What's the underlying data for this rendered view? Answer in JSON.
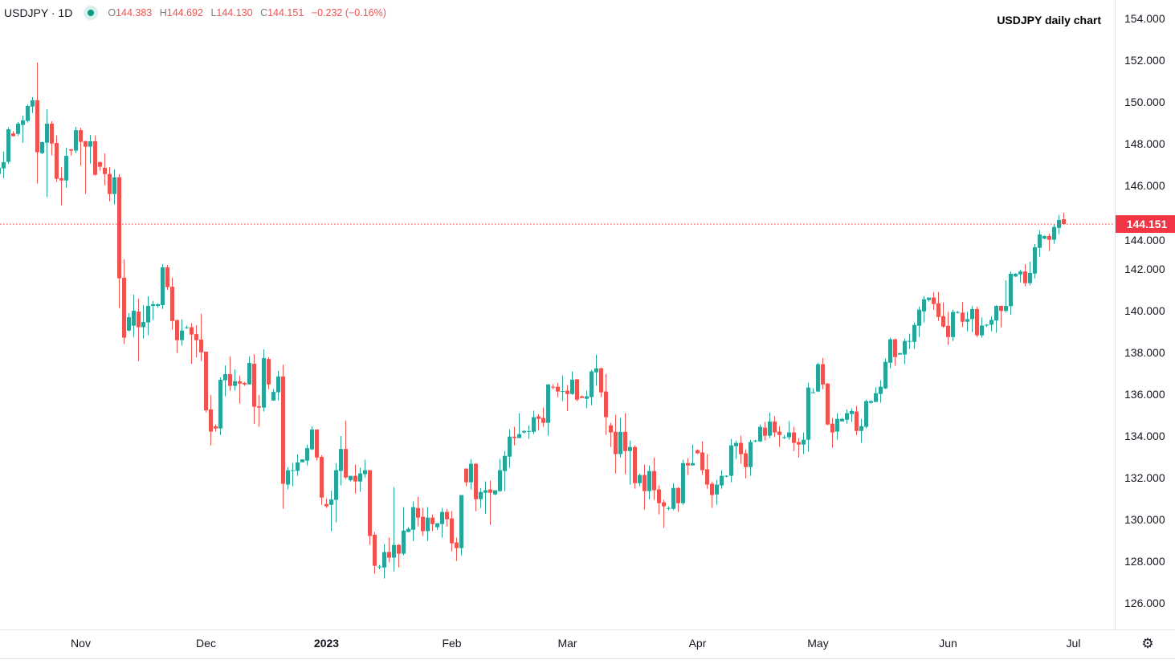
{
  "header": {
    "symbol": "USDJPY · 1D",
    "status_icon": "market-open-dot-icon",
    "open_key": "O",
    "open": "144.383",
    "high_key": "H",
    "high": "144.692",
    "low_key": "L",
    "low": "144.130",
    "close_key": "C",
    "close": "144.151",
    "change": "−0.232 (−0.16%)"
  },
  "settings_icon": "gear-icon",
  "colors": {
    "up": "#26a69a",
    "down": "#ef5350",
    "last_price": "#f23645",
    "text": "#131722"
  },
  "chart_data": {
    "type": "candlestick",
    "title": "USDJPY daily chart",
    "x_unit": "bar index",
    "ylim": [
      125,
      155
    ],
    "y_ticks": [
      "126.000",
      "128.000",
      "130.000",
      "132.000",
      "134.000",
      "136.000",
      "138.000",
      "140.000",
      "142.000",
      "144.000",
      "146.000",
      "148.000",
      "150.000",
      "152.000",
      "154.000"
    ],
    "x_ticks": [
      {
        "label": "Nov",
        "bar": 17,
        "bold": false
      },
      {
        "label": "Dec",
        "bar": 43,
        "bold": false
      },
      {
        "label": "2023",
        "bar": 68,
        "bold": true
      },
      {
        "label": "Feb",
        "bar": 94,
        "bold": false
      },
      {
        "label": "Mar",
        "bar": 118,
        "bold": false
      },
      {
        "label": "Apr",
        "bar": 145,
        "bold": false
      },
      {
        "label": "May",
        "bar": 170,
        "bold": false
      },
      {
        "label": "Jun",
        "bar": 197,
        "bold": false
      },
      {
        "label": "Jul",
        "bar": 223,
        "bold": false
      }
    ],
    "last_price": {
      "value": 144.151,
      "label": "144.151"
    },
    "grid": false,
    "ohlc_order": [
      "open",
      "high",
      "low",
      "close"
    ],
    "ohlc": [
      [
        146.55,
        147.0,
        145.8,
        146.85
      ],
      [
        146.82,
        147.62,
        146.35,
        147.12
      ],
      [
        147.13,
        148.79,
        147.03,
        148.69
      ],
      [
        148.49,
        148.6,
        148.36,
        148.36
      ],
      [
        148.47,
        149.05,
        148.37,
        148.96
      ],
      [
        148.9,
        149.35,
        148.05,
        149.12
      ],
      [
        149.09,
        149.88,
        149.01,
        149.81
      ],
      [
        149.78,
        150.23,
        149.47,
        150.08
      ],
      [
        150.08,
        151.89,
        146.09,
        147.59
      ],
      [
        147.55,
        148.1,
        147.5,
        148.08
      ],
      [
        148.05,
        149.65,
        145.44,
        148.96
      ],
      [
        148.96,
        149.08,
        147.44,
        148.01
      ],
      [
        148.04,
        148.39,
        146.17,
        146.32
      ],
      [
        146.35,
        146.88,
        145.05,
        146.24
      ],
      [
        146.24,
        147.81,
        145.9,
        147.42
      ],
      [
        147.73,
        147.75,
        147.44,
        147.67
      ],
      [
        147.67,
        148.81,
        147.55,
        148.65
      ],
      [
        148.65,
        148.77,
        146.94,
        148.09
      ],
      [
        148.12,
        148.15,
        145.59,
        147.86
      ],
      [
        147.86,
        148.42,
        147.05,
        148.12
      ],
      [
        148.12,
        148.39,
        146.47,
        146.51
      ],
      [
        147.12,
        147.14,
        146.7,
        146.9
      ],
      [
        146.85,
        147.54,
        146.01,
        146.55
      ],
      [
        146.55,
        146.88,
        145.24,
        145.59
      ],
      [
        145.59,
        146.77,
        145.09,
        146.39
      ],
      [
        146.39,
        146.54,
        140.13,
        141.55
      ],
      [
        141.58,
        142.46,
        138.4,
        138.71
      ],
      [
        139.05,
        139.88,
        139.01,
        139.69
      ],
      [
        139.28,
        140.77,
        138.74,
        140.0
      ],
      [
        139.96,
        140.58,
        137.59,
        139.21
      ],
      [
        139.21,
        140.27,
        138.67,
        139.46
      ],
      [
        139.44,
        140.69,
        138.82,
        140.23
      ],
      [
        140.23,
        140.46,
        139.55,
        140.31
      ],
      [
        140.23,
        140.35,
        140.15,
        140.31
      ],
      [
        140.27,
        142.23,
        140.08,
        142.08
      ],
      [
        142.08,
        142.19,
        141.0,
        141.13
      ],
      [
        141.15,
        141.59,
        139.09,
        139.51
      ],
      [
        139.55,
        139.58,
        137.98,
        138.59
      ],
      [
        138.59,
        139.59,
        138.32,
        139.05
      ],
      [
        139.17,
        139.3,
        139.13,
        139.21
      ],
      [
        139.21,
        139.4,
        137.45,
        138.86
      ],
      [
        138.88,
        139.31,
        137.77,
        138.59
      ],
      [
        138.62,
        139.85,
        137.59,
        138.01
      ],
      [
        138.04,
        138.04,
        135.13,
        135.23
      ],
      [
        135.27,
        135.96,
        133.55,
        134.21
      ],
      [
        134.46,
        134.56,
        134.21,
        134.36
      ],
      [
        134.36,
        136.81,
        134.05,
        136.69
      ],
      [
        136.67,
        137.38,
        135.9,
        136.96
      ],
      [
        136.96,
        137.81,
        136.17,
        136.4
      ],
      [
        136.4,
        137.19,
        136.17,
        136.62
      ],
      [
        136.62,
        136.88,
        135.55,
        136.51
      ],
      [
        136.54,
        136.59,
        136.4,
        136.47
      ],
      [
        136.47,
        137.81,
        136.45,
        137.5
      ],
      [
        137.46,
        137.92,
        134.58,
        135.4
      ],
      [
        135.42,
        135.96,
        134.44,
        135.36
      ],
      [
        135.36,
        138.15,
        135.17,
        137.73
      ],
      [
        137.69,
        137.77,
        136.24,
        136.47
      ],
      [
        135.7,
        136.24,
        135.7,
        136.11
      ],
      [
        136.09,
        137.12,
        135.7,
        136.85
      ],
      [
        136.85,
        137.42,
        130.51,
        131.71
      ],
      [
        131.67,
        132.51,
        131.44,
        132.36
      ],
      [
        132.33,
        132.7,
        131.59,
        132.36
      ],
      [
        132.33,
        133.12,
        132.09,
        132.73
      ],
      [
        132.74,
        132.88,
        132.74,
        132.88
      ],
      [
        132.82,
        133.58,
        132.59,
        133.42
      ],
      [
        133.36,
        134.46,
        133.32,
        134.31
      ],
      [
        134.31,
        134.31,
        132.82,
        132.97
      ],
      [
        133.0,
        133.08,
        130.7,
        131.05
      ],
      [
        130.74,
        131.0,
        130.55,
        130.63
      ],
      [
        130.7,
        131.38,
        129.44,
        130.96
      ],
      [
        130.94,
        132.69,
        129.86,
        132.36
      ],
      [
        132.32,
        134.0,
        131.63,
        133.38
      ],
      [
        133.38,
        134.73,
        131.94,
        132.01
      ],
      [
        131.88,
        132.09,
        131.82,
        132.09
      ],
      [
        132.09,
        132.63,
        131.24,
        131.82
      ],
      [
        131.82,
        132.48,
        131.32,
        132.21
      ],
      [
        132.17,
        132.86,
        132.01,
        132.36
      ],
      [
        132.36,
        132.36,
        128.78,
        129.21
      ],
      [
        129.27,
        129.4,
        127.4,
        127.78
      ],
      [
        127.72,
        127.82,
        127.62,
        127.75
      ],
      [
        127.7,
        128.82,
        127.17,
        128.44
      ],
      [
        128.44,
        129.13,
        127.94,
        128.17
      ],
      [
        128.17,
        131.55,
        127.51,
        128.78
      ],
      [
        128.78,
        128.82,
        127.7,
        128.36
      ],
      [
        128.36,
        130.59,
        128.28,
        129.47
      ],
      [
        129.4,
        129.63,
        129.4,
        129.55
      ],
      [
        129.51,
        130.86,
        128.97,
        130.59
      ],
      [
        130.55,
        131.09,
        129.67,
        130.09
      ],
      [
        130.13,
        130.55,
        129.21,
        129.44
      ],
      [
        129.44,
        130.59,
        128.97,
        130.09
      ],
      [
        130.09,
        130.24,
        129.44,
        129.78
      ],
      [
        129.63,
        129.82,
        129.51,
        129.82
      ],
      [
        129.78,
        130.55,
        129.13,
        130.36
      ],
      [
        130.36,
        130.51,
        129.67,
        130.01
      ],
      [
        130.05,
        130.4,
        128.47,
        128.86
      ],
      [
        128.9,
        129.13,
        128.01,
        128.63
      ],
      [
        128.63,
        131.17,
        128.28,
        131.17
      ],
      [
        132.44,
        132.44,
        131.59,
        131.78
      ],
      [
        131.78,
        132.9,
        131.44,
        132.67
      ],
      [
        132.67,
        132.7,
        130.4,
        130.97
      ],
      [
        130.97,
        131.51,
        130.55,
        131.32
      ],
      [
        131.28,
        131.82,
        130.28,
        131.4
      ],
      [
        131.44,
        131.86,
        129.74,
        131.28
      ],
      [
        131.2,
        131.4,
        131.17,
        131.4
      ],
      [
        131.36,
        132.9,
        131.32,
        132.36
      ],
      [
        132.32,
        133.28,
        131.36,
        133.05
      ],
      [
        133.01,
        134.32,
        132.47,
        133.97
      ],
      [
        133.97,
        134.44,
        133.55,
        133.9
      ],
      [
        133.9,
        135.09,
        133.9,
        134.09
      ],
      [
        134.17,
        134.28,
        134.12,
        134.24
      ],
      [
        134.2,
        134.51,
        133.86,
        134.24
      ],
      [
        134.2,
        135.21,
        134.09,
        134.9
      ],
      [
        134.94,
        135.05,
        134.28,
        134.82
      ],
      [
        134.86,
        135.36,
        134.44,
        134.63
      ],
      [
        134.63,
        136.47,
        134.01,
        136.47
      ],
      [
        136.36,
        136.47,
        136.24,
        136.32
      ],
      [
        136.36,
        136.55,
        135.86,
        136.13
      ],
      [
        136.13,
        136.9,
        135.67,
        136.15
      ],
      [
        136.17,
        136.44,
        135.2,
        136.01
      ],
      [
        136.01,
        137.09,
        135.97,
        136.7
      ],
      [
        136.71,
        136.74,
        135.67,
        135.74
      ],
      [
        135.9,
        135.94,
        135.82,
        135.82
      ],
      [
        135.78,
        136.17,
        135.32,
        135.9
      ],
      [
        135.86,
        137.17,
        135.47,
        137.09
      ],
      [
        137.05,
        137.9,
        136.4,
        137.24
      ],
      [
        137.24,
        137.28,
        135.86,
        136.09
      ],
      [
        136.13,
        136.97,
        134.05,
        134.9
      ],
      [
        134.51,
        134.63,
        133.47,
        134.17
      ],
      [
        134.2,
        135.01,
        132.2,
        133.13
      ],
      [
        133.13,
        134.86,
        132.97,
        134.2
      ],
      [
        134.2,
        135.09,
        132.17,
        133.28
      ],
      [
        133.28,
        133.78,
        131.67,
        133.47
      ],
      [
        133.47,
        133.55,
        131.47,
        131.74
      ],
      [
        131.74,
        132.2,
        131.59,
        132.13
      ],
      [
        132.13,
        132.63,
        130.47,
        131.36
      ],
      [
        131.36,
        132.59,
        130.97,
        132.32
      ],
      [
        132.32,
        132.97,
        130.94,
        131.4
      ],
      [
        131.44,
        131.63,
        130.24,
        130.78
      ],
      [
        130.82,
        130.94,
        129.59,
        130.63
      ],
      [
        130.51,
        130.63,
        130.44,
        130.55
      ],
      [
        130.51,
        131.74,
        130.44,
        131.51
      ],
      [
        131.51,
        131.55,
        130.36,
        130.78
      ],
      [
        130.78,
        132.86,
        130.7,
        132.7
      ],
      [
        132.7,
        132.94,
        132.13,
        132.59
      ],
      [
        132.59,
        133.59,
        132.59,
        132.7
      ],
      [
        133.32,
        133.36,
        133.13,
        133.17
      ],
      [
        133.21,
        133.74,
        132.13,
        132.36
      ],
      [
        132.4,
        133.13,
        131.47,
        131.67
      ],
      [
        131.71,
        131.82,
        130.55,
        131.17
      ],
      [
        131.2,
        131.9,
        130.7,
        131.67
      ],
      [
        131.63,
        132.36,
        131.47,
        132.09
      ],
      [
        132.05,
        132.12,
        132.02,
        132.09
      ],
      [
        132.09,
        133.86,
        131.78,
        133.55
      ],
      [
        133.51,
        133.78,
        132.9,
        133.67
      ],
      [
        133.67,
        134.01,
        132.67,
        133.13
      ],
      [
        133.17,
        133.36,
        131.97,
        132.51
      ],
      [
        132.51,
        133.82,
        132.09,
        133.71
      ],
      [
        133.74,
        133.82,
        133.7,
        133.78
      ],
      [
        133.74,
        134.55,
        133.71,
        134.44
      ],
      [
        134.4,
        134.67,
        133.78,
        134.01
      ],
      [
        134.01,
        135.13,
        133.9,
        134.69
      ],
      [
        134.69,
        134.94,
        133.94,
        134.17
      ],
      [
        134.21,
        134.47,
        133.47,
        134.05
      ],
      [
        133.9,
        134.05,
        133.86,
        133.94
      ],
      [
        133.94,
        134.71,
        133.82,
        134.17
      ],
      [
        134.17,
        134.44,
        133.28,
        133.67
      ],
      [
        133.71,
        133.9,
        132.97,
        133.59
      ],
      [
        133.59,
        134.17,
        133.13,
        133.82
      ],
      [
        133.82,
        136.55,
        133.24,
        136.32
      ],
      [
        136.05,
        136.28,
        136.05,
        136.09
      ],
      [
        136.13,
        137.51,
        136.1,
        137.44
      ],
      [
        137.44,
        137.74,
        136.24,
        136.47
      ],
      [
        136.51,
        136.55,
        134.51,
        134.55
      ],
      [
        134.59,
        134.86,
        133.44,
        134.17
      ],
      [
        134.21,
        135.09,
        133.82,
        134.82
      ],
      [
        134.7,
        134.86,
        134.7,
        134.82
      ],
      [
        134.78,
        135.28,
        134.59,
        135.09
      ],
      [
        135.05,
        135.32,
        134.67,
        135.2
      ],
      [
        135.17,
        135.44,
        134.05,
        134.24
      ],
      [
        134.24,
        134.82,
        133.67,
        134.47
      ],
      [
        134.44,
        135.74,
        134.36,
        135.67
      ],
      [
        135.59,
        135.71,
        135.55,
        135.67
      ],
      [
        135.63,
        136.32,
        135.63,
        136.05
      ],
      [
        136.01,
        136.67,
        135.59,
        136.36
      ],
      [
        136.28,
        137.7,
        136.24,
        137.55
      ],
      [
        137.51,
        138.71,
        137.24,
        138.63
      ],
      [
        138.63,
        138.67,
        137.36,
        137.78
      ],
      [
        137.9,
        137.97,
        137.9,
        137.97
      ],
      [
        137.9,
        138.67,
        137.44,
        138.55
      ],
      [
        138.51,
        138.9,
        138.17,
        138.55
      ],
      [
        138.51,
        139.44,
        138.17,
        139.32
      ],
      [
        139.28,
        140.2,
        138.74,
        140.05
      ],
      [
        139.97,
        140.7,
        139.44,
        140.55
      ],
      [
        140.51,
        140.63,
        140.44,
        140.63
      ],
      [
        140.63,
        140.9,
        140.05,
        140.32
      ],
      [
        140.36,
        140.9,
        139.51,
        139.7
      ],
      [
        139.74,
        140.4,
        139.17,
        139.24
      ],
      [
        139.28,
        139.94,
        138.36,
        138.74
      ],
      [
        138.74,
        140.05,
        138.55,
        139.94
      ],
      [
        139.9,
        139.98,
        139.86,
        139.94
      ],
      [
        139.91,
        140.42,
        139.21,
        139.47
      ],
      [
        139.47,
        139.95,
        139.01,
        139.6
      ],
      [
        139.6,
        140.22,
        138.97,
        140.08
      ],
      [
        140.08,
        140.19,
        138.74,
        138.82
      ],
      [
        138.82,
        139.68,
        138.71,
        139.29
      ],
      [
        139.29,
        139.37,
        139.22,
        139.33
      ],
      [
        139.33,
        139.72,
        139.01,
        139.56
      ],
      [
        139.53,
        140.27,
        138.94,
        140.23
      ],
      [
        140.23,
        140.25,
        139.21,
        139.99
      ],
      [
        139.99,
        141.46,
        139.91,
        140.23
      ],
      [
        140.22,
        141.88,
        139.8,
        141.77
      ],
      [
        141.64,
        141.8,
        141.62,
        141.77
      ],
      [
        141.74,
        141.96,
        141.36,
        141.88
      ],
      [
        141.88,
        142.23,
        141.17,
        141.32
      ],
      [
        141.32,
        142.35,
        141.21,
        141.81
      ],
      [
        141.78,
        143.19,
        141.55,
        143.04
      ],
      [
        143.01,
        143.85,
        142.59,
        143.65
      ],
      [
        143.45,
        143.6,
        143.43,
        143.58
      ],
      [
        143.58,
        143.69,
        142.86,
        143.4
      ],
      [
        143.4,
        144.13,
        143.2,
        144.01
      ],
      [
        143.97,
        144.58,
        143.67,
        144.35
      ],
      [
        144.383,
        144.692,
        144.13,
        144.151
      ]
    ]
  }
}
